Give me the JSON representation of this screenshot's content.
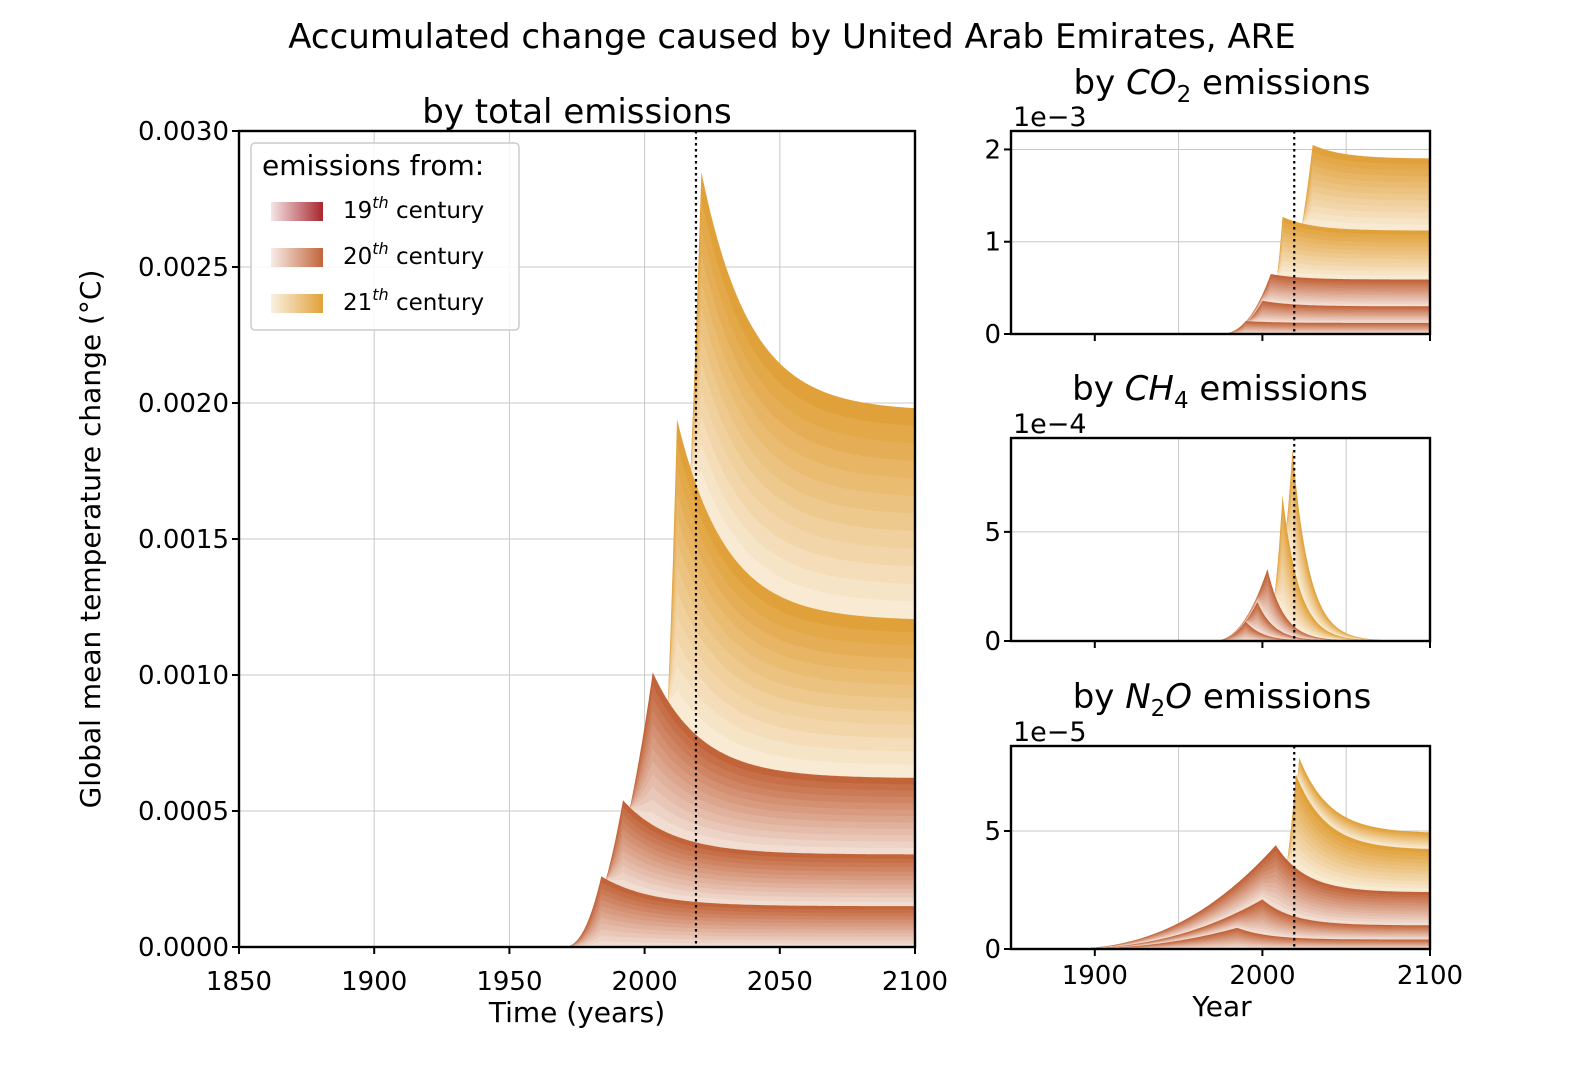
{
  "figure": {
    "title": "Accumulated change caused by United Arab Emirates, ARE",
    "ylabel": "Global mean temperature change (°C)",
    "ylabel_unit": "°C",
    "colors": {
      "c19": "#a8262e",
      "c20": "#c2643a",
      "c21": "#e1a13a",
      "grid": "#c8c8c8",
      "marker": "#000000"
    }
  },
  "legend": {
    "title": "emissions from:",
    "items": [
      {
        "label": "19",
        "sup": "th",
        "suffix": " century",
        "color": "#a8262e"
      },
      {
        "label": "20",
        "sup": "th",
        "suffix": " century",
        "color": "#c2643a"
      },
      {
        "label": "21",
        "sup": "th",
        "suffix": " century",
        "color": "#e1a13a"
      }
    ]
  },
  "chart_data": [
    {
      "id": "total",
      "type": "area",
      "title": "by total emissions",
      "xlabel": "Time (years)",
      "xlim": [
        1850,
        2100
      ],
      "ylim": [
        0,
        0.003
      ],
      "xticks": [
        "1850",
        "1900",
        "1950",
        "2000",
        "2050",
        "2100"
      ],
      "yticks": [
        "0.0000",
        "0.0005",
        "0.0010",
        "0.0015",
        "0.0020",
        "0.0025",
        "0.0030"
      ],
      "marker_year": 2019,
      "series": [
        {
          "century": "20th",
          "start": 1970,
          "peak_year": 1984,
          "peak": 0.00026,
          "end": 0.00015
        },
        {
          "century": "20th",
          "start": 1970,
          "peak_year": 1992,
          "peak": 0.00054,
          "end": 0.00034
        },
        {
          "century": "20th",
          "start": 1970,
          "peak_year": 2003,
          "peak": 0.00101,
          "end": 0.00062
        },
        {
          "century": "21st",
          "start": 2000,
          "peak_year": 2012,
          "peak": 0.00194,
          "end": 0.0012
        },
        {
          "century": "21st",
          "start": 2000,
          "peak_year": 2021,
          "peak": 0.00285,
          "end": 0.00197
        }
      ]
    },
    {
      "id": "co2",
      "type": "area",
      "title_prefix": "by ",
      "title_formula": "CO",
      "title_sub": "2",
      "title_suffix": " emissions",
      "multiplier": "1e−3",
      "xlim": [
        1850,
        2100
      ],
      "ylim": [
        0,
        2.2
      ],
      "yticks": [
        "0",
        "1",
        "2"
      ],
      "marker_year": 2019,
      "series": [
        {
          "century": "20th",
          "start": 1975,
          "peak_year": 1990,
          "peak": 0.14,
          "end": 0.12
        },
        {
          "century": "20th",
          "start": 1975,
          "peak_year": 2000,
          "peak": 0.36,
          "end": 0.3
        },
        {
          "century": "20th",
          "start": 1975,
          "peak_year": 2005,
          "peak": 0.65,
          "end": 0.59
        },
        {
          "century": "21st",
          "start": 2000,
          "peak_year": 2012,
          "peak": 1.27,
          "end": 1.12
        },
        {
          "century": "21st",
          "start": 2000,
          "peak_year": 2030,
          "peak": 2.05,
          "end": 1.9
        }
      ]
    },
    {
      "id": "ch4",
      "type": "area",
      "title_prefix": "by ",
      "title_formula": "CH",
      "title_sub": "4",
      "title_suffix": " emissions",
      "multiplier": "1e−4",
      "xlim": [
        1850,
        2100
      ],
      "ylim": [
        0,
        9.3
      ],
      "yticks": [
        "0",
        "5"
      ],
      "marker_year": 2019,
      "series": [
        {
          "century": "20th",
          "start": 1970,
          "peak_year": 1990,
          "peak": 0.9,
          "end": 0
        },
        {
          "century": "20th",
          "start": 1970,
          "peak_year": 1997,
          "peak": 1.8,
          "end": 0
        },
        {
          "century": "20th",
          "start": 1970,
          "peak_year": 2003,
          "peak": 3.3,
          "end": 0
        },
        {
          "century": "21st",
          "start": 2000,
          "peak_year": 2012,
          "peak": 6.7,
          "end": 0
        },
        {
          "century": "21st",
          "start": 2000,
          "peak_year": 2018,
          "peak": 8.8,
          "end": 0
        }
      ]
    },
    {
      "id": "n2o",
      "type": "area",
      "title_prefix": "by ",
      "title_formula": "N",
      "title_sub": "2",
      "title_formula_tail": "O",
      "title_suffix": " emissions",
      "multiplier": "1e−5",
      "xlabel": "Year",
      "xlim": [
        1850,
        2100
      ],
      "ylim": [
        0,
        8.6
      ],
      "xticks": [
        "1900",
        "2000",
        "2100"
      ],
      "yticks": [
        "0",
        "5"
      ],
      "marker_year": 2019,
      "series": [
        {
          "century": "20th",
          "start": 1880,
          "peak_year": 1985,
          "peak": 0.9,
          "end": 0.4
        },
        {
          "century": "20th",
          "start": 1880,
          "peak_year": 2000,
          "peak": 2.1,
          "end": 1.0
        },
        {
          "century": "20th",
          "start": 1880,
          "peak_year": 2008,
          "peak": 4.4,
          "end": 2.4
        },
        {
          "century": "21st",
          "start": 2000,
          "peak_year": 2020,
          "peak": 7.4,
          "end": 4.2
        },
        {
          "century": "21st",
          "start": 2000,
          "peak_year": 2022,
          "peak": 8.1,
          "end": 4.9
        }
      ]
    }
  ]
}
